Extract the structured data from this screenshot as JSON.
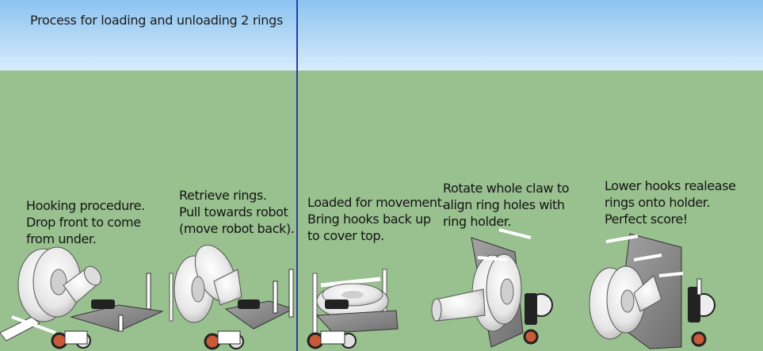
{
  "title": "Process for loading and unloading 2 rings",
  "steps": [
    {
      "lines": [
        "Hooking procedure.",
        "Drop front to come",
        "from under."
      ]
    },
    {
      "lines": [
        "Retrieve rings.",
        "Pull towards robot",
        "(move robot back)."
      ]
    },
    {
      "lines": [
        "Loaded for movement.",
        "Bring hooks back up",
        "to cover top."
      ]
    },
    {
      "lines": [
        "Rotate whole claw to",
        "align ring holes with",
        "ring holder."
      ]
    },
    {
      "lines": [
        "Lower hooks realease",
        "rings onto holder.",
        "Perfect score!"
      ]
    }
  ],
  "colors": {
    "sky": "#b5d9f6",
    "ground": "#99c08f",
    "axis": "#2b3bb0",
    "plate": "#8f8f8f",
    "ring": "#f2f2f2"
  }
}
